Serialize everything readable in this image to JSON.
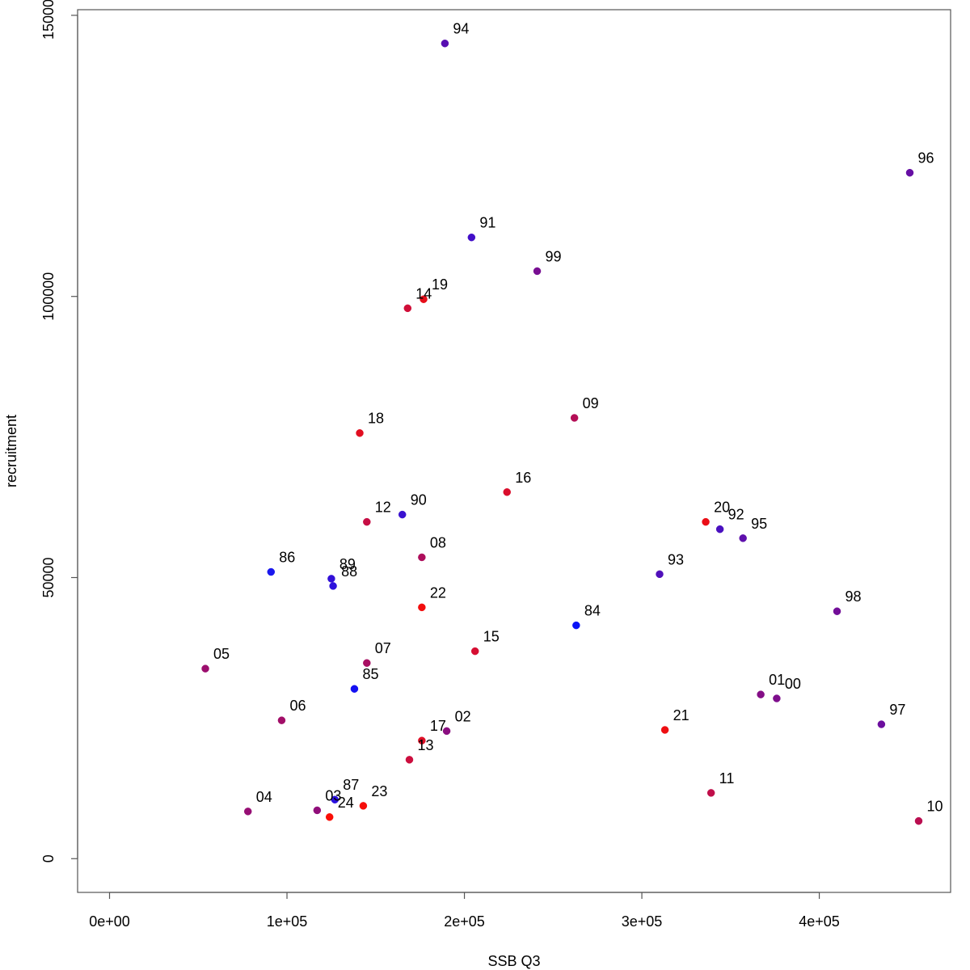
{
  "chart_data": {
    "type": "scatter",
    "title": "",
    "xlabel": "SSB Q3",
    "ylabel": "recruitment",
    "xlim": [
      -18000,
      474000
    ],
    "ylim": [
      -6000,
      151000
    ],
    "x_ticks": [
      0,
      100000,
      200000,
      300000,
      400000
    ],
    "x_tick_labels": [
      "0e+00",
      "1e+05",
      "2e+05",
      "3e+05",
      "4e+05"
    ],
    "y_ticks": [
      0,
      50000,
      100000,
      150000
    ],
    "y_tick_labels": [
      "0",
      "50000",
      "100000",
      "150000"
    ],
    "grid": false,
    "points": [
      {
        "label": "84",
        "x": 263000,
        "y": 41500,
        "color": "#0a13f7"
      },
      {
        "label": "85",
        "x": 138000,
        "y": 30200,
        "color": "#1410f2"
      },
      {
        "label": "86",
        "x": 91000,
        "y": 51000,
        "color": "#1a18ee"
      },
      {
        "label": "87",
        "x": 127000,
        "y": 10500,
        "color": "#2a10e0"
      },
      {
        "label": "88",
        "x": 126000,
        "y": 48500,
        "color": "#2e12dc"
      },
      {
        "label": "89",
        "x": 125000,
        "y": 49800,
        "color": "#3210d8"
      },
      {
        "label": "90",
        "x": 165000,
        "y": 61200,
        "color": "#3a12d0"
      },
      {
        "label": "91",
        "x": 204000,
        "y": 110500,
        "color": "#420ec8"
      },
      {
        "label": "92",
        "x": 344000,
        "y": 58600,
        "color": "#4a10c0"
      },
      {
        "label": "93",
        "x": 310000,
        "y": 50600,
        "color": "#5010ba"
      },
      {
        "label": "94",
        "x": 189000,
        "y": 145000,
        "color": "#580eb2"
      },
      {
        "label": "95",
        "x": 357000,
        "y": 57000,
        "color": "#5e10ac"
      },
      {
        "label": "96",
        "x": 451000,
        "y": 122000,
        "color": "#660ea4"
      },
      {
        "label": "97",
        "x": 435000,
        "y": 23900,
        "color": "#6c0e9e"
      },
      {
        "label": "98",
        "x": 410000,
        "y": 44000,
        "color": "#720e98"
      },
      {
        "label": "99",
        "x": 241000,
        "y": 104500,
        "color": "#780e92"
      },
      {
        "label": "00",
        "x": 376000,
        "y": 28500,
        "color": "#7e0e8c"
      },
      {
        "label": "01",
        "x": 367000,
        "y": 29200,
        "color": "#840e86"
      },
      {
        "label": "02",
        "x": 190000,
        "y": 22700,
        "color": "#8a0e80"
      },
      {
        "label": "03",
        "x": 117000,
        "y": 8600,
        "color": "#900e7a"
      },
      {
        "label": "04",
        "x": 78000,
        "y": 8400,
        "color": "#960e74"
      },
      {
        "label": "05",
        "x": 54000,
        "y": 33800,
        "color": "#9c0e6e"
      },
      {
        "label": "06",
        "x": 97000,
        "y": 24600,
        "color": "#a20e68"
      },
      {
        "label": "07",
        "x": 145000,
        "y": 34800,
        "color": "#a80e62"
      },
      {
        "label": "08",
        "x": 176000,
        "y": 53600,
        "color": "#ae0e5c"
      },
      {
        "label": "09",
        "x": 262000,
        "y": 78400,
        "color": "#b40e56"
      },
      {
        "label": "10",
        "x": 456000,
        "y": 6700,
        "color": "#ba0e50"
      },
      {
        "label": "11",
        "x": 339000,
        "y": 11700,
        "color": "#c00e4a"
      },
      {
        "label": "12",
        "x": 145000,
        "y": 59900,
        "color": "#c60e44"
      },
      {
        "label": "13",
        "x": 169000,
        "y": 17600,
        "color": "#cc0e3e"
      },
      {
        "label": "14",
        "x": 168000,
        "y": 97900,
        "color": "#d00e38"
      },
      {
        "label": "15",
        "x": 206000,
        "y": 36900,
        "color": "#d60e32"
      },
      {
        "label": "16",
        "x": 224000,
        "y": 65200,
        "color": "#da0e2c"
      },
      {
        "label": "17",
        "x": 176000,
        "y": 21000,
        "color": "#de0e26"
      },
      {
        "label": "18",
        "x": 141000,
        "y": 75700,
        "color": "#e20e20"
      },
      {
        "label": "19",
        "x": 177000,
        "y": 99500,
        "color": "#e60e1a"
      },
      {
        "label": "20",
        "x": 336000,
        "y": 59900,
        "color": "#ea0e16"
      },
      {
        "label": "21",
        "x": 313000,
        "y": 22900,
        "color": "#ee0e12"
      },
      {
        "label": "22",
        "x": 176000,
        "y": 44700,
        "color": "#f20e0e"
      },
      {
        "label": "23",
        "x": 143000,
        "y": 9400,
        "color": "#f60e0a"
      },
      {
        "label": "24",
        "x": 124000,
        "y": 7400,
        "color": "#fa0e06"
      }
    ]
  }
}
